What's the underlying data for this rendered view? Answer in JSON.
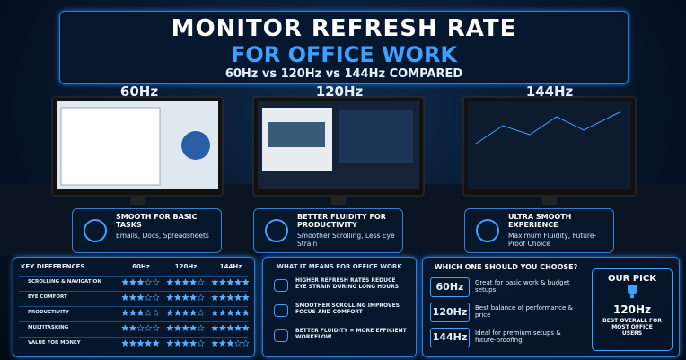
{
  "header": {
    "title": "MONITOR REFRESH RATE",
    "title2": "FOR OFFICE WORK",
    "subtitle": "60Hz vs 120Hz vs 144Hz COMPARED"
  },
  "monitors": [
    {
      "label": "60Hz",
      "heading": "SMOOTH FOR BASIC TASKS",
      "detail": "Emails, Docs, Spreadsheets"
    },
    {
      "label": "120Hz",
      "heading": "BETTER FLUIDITY FOR PRODUCTIVITY",
      "detail": "Smoother Scrolling, Less Eye Strain"
    },
    {
      "label": "144Hz",
      "heading": "ULTRA SMOOTH EXPERIENCE",
      "detail": "Maximum Fluidity, Future-Proof Choice"
    }
  ],
  "key_differences": {
    "title": "KEY DIFFERENCES",
    "columns": [
      "60Hz",
      "120Hz",
      "144Hz"
    ],
    "rating_scale": 5,
    "rows": [
      {
        "label": "SCROLLING & NAVIGATION",
        "ratings": [
          3,
          4,
          5
        ]
      },
      {
        "label": "EYE COMFORT",
        "ratings": [
          3,
          4,
          5
        ]
      },
      {
        "label": "PRODUCTIVITY",
        "ratings": [
          3,
          4,
          5
        ]
      },
      {
        "label": "MULTITASKING",
        "ratings": [
          2,
          4,
          5
        ]
      },
      {
        "label": "VALUE FOR MONEY",
        "ratings": [
          5,
          4,
          3
        ]
      }
    ]
  },
  "meaning": {
    "title": "WHAT IT MEANS FOR OFFICE WORK",
    "items": [
      "HIGHER REFRESH RATES REDUCE EYE STRAIN DURING LONG HOURS",
      "SMOOTHER SCROLLING IMPROVES FOCUS AND COMFORT",
      "BETTER FLUIDITY = MORE EFFICIENT WORKFLOW"
    ]
  },
  "choose": {
    "title": "WHICH ONE SHOULD YOU CHOOSE?",
    "options": [
      {
        "rate": "60Hz",
        "text": "Great for basic work & budget setups"
      },
      {
        "rate": "120Hz",
        "text": "Best balance of performance & price"
      },
      {
        "rate": "144Hz",
        "text": "Ideal for premium setups & future-proofing"
      }
    ]
  },
  "pick": {
    "title": "OUR PICK",
    "rate": "120Hz",
    "text": "BEST OVERALL FOR MOST OFFICE USERS"
  }
}
